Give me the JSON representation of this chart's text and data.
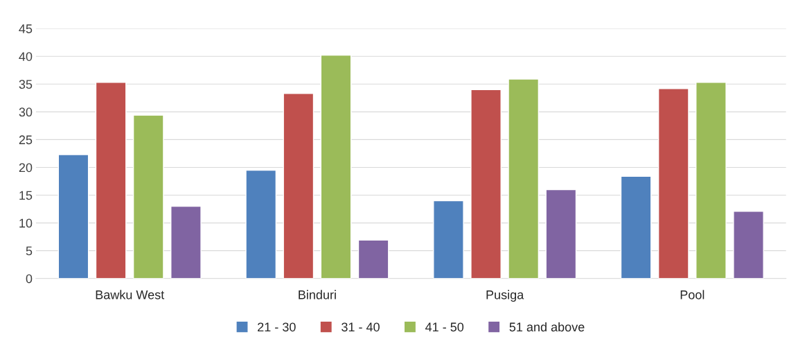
{
  "chart_data": {
    "type": "bar",
    "categories": [
      "Bawku West",
      "Binduri",
      "Pusiga",
      "Pool"
    ],
    "series": [
      {
        "name": "21 - 30",
        "color": "#4f81bd",
        "values": [
          22.3,
          19.5,
          14.0,
          18.4
        ]
      },
      {
        "name": "31 - 40",
        "color": "#c0504d",
        "values": [
          35.3,
          33.3,
          34.0,
          34.2
        ]
      },
      {
        "name": "41 - 50",
        "color": "#9bbb59",
        "values": [
          29.4,
          40.2,
          35.9,
          35.3
        ]
      },
      {
        "name": "51 and above",
        "color": "#8064a2",
        "values": [
          13.0,
          6.9,
          16.0,
          12.1
        ]
      }
    ],
    "ylim": [
      0,
      45
    ],
    "yticks": [
      0,
      5,
      10,
      15,
      20,
      25,
      30,
      35,
      40,
      45
    ],
    "grid": "y",
    "legend": "bottom"
  }
}
